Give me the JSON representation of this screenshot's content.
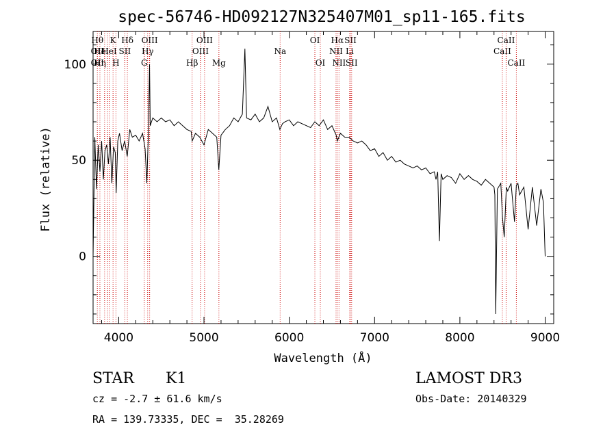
{
  "chart_data": {
    "type": "line",
    "title": "spec-56746-HD092127N325407M01_sp11-165.fits",
    "xlabel": "Wavelength (Å)",
    "ylabel": "Flux (relative)",
    "xlim": [
      3700,
      9100
    ],
    "ylim": [
      -35,
      117
    ],
    "xticks": [
      {
        "v": 4000,
        "label": "4000"
      },
      {
        "v": 5000,
        "label": "5000"
      },
      {
        "v": 6000,
        "label": "6000"
      },
      {
        "v": 7000,
        "label": "7000"
      },
      {
        "v": 8000,
        "label": "8000"
      },
      {
        "v": 9000,
        "label": "9000"
      }
    ],
    "yticks": [
      {
        "v": 0,
        "label": "0"
      },
      {
        "v": 50,
        "label": "50"
      },
      {
        "v": 100,
        "label": "100"
      }
    ],
    "x_minor_step": 200,
    "y_minor_step": 10,
    "spectrum": {
      "wavelength": [
        3700,
        3720,
        3740,
        3760,
        3780,
        3800,
        3820,
        3840,
        3860,
        3880,
        3900,
        3920,
        3940,
        3960,
        3970,
        3990,
        4010,
        4040,
        4070,
        4100,
        4130,
        4160,
        4200,
        4240,
        4280,
        4310,
        4330,
        4350,
        4362,
        4370,
        4400,
        4450,
        4500,
        4550,
        4600,
        4650,
        4700,
        4750,
        4800,
        4850,
        4862,
        4900,
        4950,
        5000,
        5050,
        5100,
        5150,
        5174,
        5200,
        5250,
        5300,
        5350,
        5400,
        5450,
        5480,
        5500,
        5550,
        5600,
        5650,
        5700,
        5750,
        5800,
        5850,
        5890,
        5920,
        5950,
        6000,
        6050,
        6100,
        6150,
        6200,
        6250,
        6300,
        6350,
        6400,
        6450,
        6500,
        6550,
        6563,
        6600,
        6650,
        6700,
        6750,
        6800,
        6850,
        6900,
        6950,
        7000,
        7050,
        7100,
        7150,
        7200,
        7250,
        7300,
        7350,
        7400,
        7450,
        7500,
        7550,
        7600,
        7650,
        7700,
        7720,
        7740,
        7760,
        7780,
        7800,
        7850,
        7900,
        7950,
        8000,
        8050,
        8100,
        8150,
        8200,
        8250,
        8300,
        8350,
        8400,
        8410,
        8420,
        8440,
        8480,
        8500,
        8520,
        8545,
        8560,
        8600,
        8640,
        8662,
        8680,
        8700,
        8750,
        8800,
        8850,
        8900,
        8950,
        8980,
        9000
      ],
      "flux": [
        0,
        62,
        35,
        58,
        44,
        60,
        40,
        55,
        58,
        48,
        62,
        38,
        57,
        54,
        33,
        60,
        64,
        55,
        60,
        52,
        66,
        62,
        63,
        60,
        64,
        56,
        38,
        66,
        100,
        68,
        72,
        70,
        72,
        70,
        71,
        68,
        70,
        68,
        66,
        65,
        60,
        64,
        62,
        58,
        66,
        64,
        62,
        45,
        63,
        66,
        68,
        72,
        70,
        74,
        108,
        72,
        71,
        74,
        70,
        72,
        78,
        70,
        72,
        66,
        69,
        70,
        71,
        68,
        70,
        69,
        68,
        67,
        70,
        68,
        71,
        66,
        68,
        63,
        60,
        64,
        62,
        62,
        60,
        59,
        60,
        58,
        55,
        56,
        52,
        54,
        50,
        52,
        49,
        50,
        48,
        47,
        46,
        47,
        45,
        46,
        43,
        44,
        40,
        44,
        8,
        43,
        40,
        42,
        41,
        38,
        43,
        40,
        42,
        40,
        39,
        37,
        40,
        38,
        36,
        32,
        -30,
        35,
        38,
        20,
        10,
        36,
        34,
        38,
        18,
        37,
        38,
        32,
        36,
        14,
        36,
        16,
        35,
        28,
        0
      ]
    },
    "line_markers": [
      {
        "wavelength": 3750,
        "label": "Hθ",
        "row": 1
      },
      {
        "wavelength": 3750,
        "label": "OII",
        "row": 2
      },
      {
        "wavelength": 3750,
        "label": "OII",
        "row": 3
      },
      {
        "wavelength": 3780,
        "label": "He",
        "row": 2
      },
      {
        "wavelength": 3780,
        "label": "Hη",
        "row": 3
      },
      {
        "wavelength": 3835,
        "label": "",
        "row": 0
      },
      {
        "wavelength": 3870,
        "label": "",
        "row": 0
      },
      {
        "wavelength": 3889,
        "label": "HeI",
        "row": 2
      },
      {
        "wavelength": 3934,
        "label": "K",
        "row": 1
      },
      {
        "wavelength": 3968,
        "label": "H",
        "row": 3
      },
      {
        "wavelength": 4072,
        "label": "SII",
        "row": 2
      },
      {
        "wavelength": 4102,
        "label": "Hδ",
        "row": 1
      },
      {
        "wavelength": 4300,
        "label": "G",
        "row": 3
      },
      {
        "wavelength": 4340,
        "label": "Hγ",
        "row": 2
      },
      {
        "wavelength": 4363,
        "label": "OIII",
        "row": 1
      },
      {
        "wavelength": 4861,
        "label": "Hβ",
        "row": 3
      },
      {
        "wavelength": 4959,
        "label": "OIII",
        "row": 2
      },
      {
        "wavelength": 5007,
        "label": "OIII",
        "row": 1
      },
      {
        "wavelength": 5175,
        "label": "Mg",
        "row": 3
      },
      {
        "wavelength": 5893,
        "label": "Na",
        "row": 2
      },
      {
        "wavelength": 6300,
        "label": "OI",
        "row": 1
      },
      {
        "wavelength": 6364,
        "label": "OI",
        "row": 3
      },
      {
        "wavelength": 6548,
        "label": "NII",
        "row": 2
      },
      {
        "wavelength": 6563,
        "label": "Hα",
        "row": 1
      },
      {
        "wavelength": 6583,
        "label": "NII",
        "row": 3
      },
      {
        "wavelength": 6708,
        "label": "Li",
        "row": 2
      },
      {
        "wavelength": 6717,
        "label": "SII",
        "row": 1
      },
      {
        "wavelength": 6731,
        "label": "SII",
        "row": 3
      },
      {
        "wavelength": 8498,
        "label": "CaII",
        "row": 2
      },
      {
        "wavelength": 8542,
        "label": "CaII",
        "row": 1
      },
      {
        "wavelength": 8662,
        "label": "CaII",
        "row": 3
      }
    ]
  },
  "info": {
    "class_label": "STAR",
    "subclass": "K1",
    "survey": "LAMOST DR3",
    "cz": "cz = -2.7 ± 61.6 km/s",
    "obs_date": "Obs-Date: 20140329",
    "coords": "RA = 139.73335, DEC =  35.28269"
  },
  "colors": {
    "line": "#000000",
    "marker": "#cc0000",
    "axis": "#000000",
    "background": "#ffffff"
  }
}
